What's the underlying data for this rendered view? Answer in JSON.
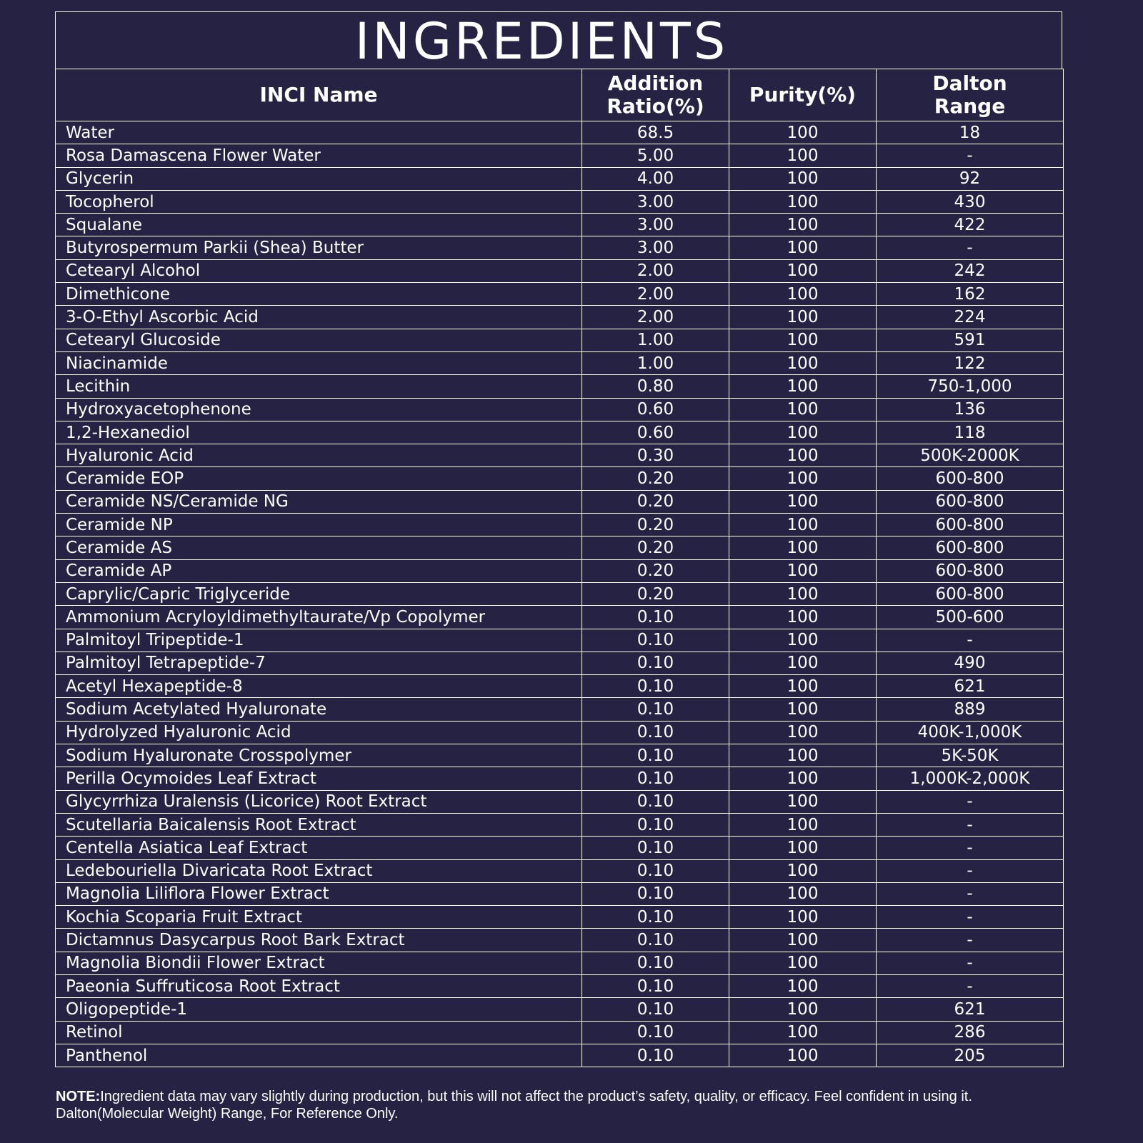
{
  "title": "INGREDIENTS",
  "headers": {
    "inci_name": "INCI Name",
    "addition_ratio_line1": "Addition",
    "addition_ratio_line2": "Ratio(%)",
    "purity": "Purity(%)",
    "dalton_line1": "Dalton",
    "dalton_line2": "Range"
  },
  "rows": [
    {
      "name": "Water",
      "ratio": "68.5",
      "purity": "100",
      "dalton": "18"
    },
    {
      "name": "Rosa Damascena Flower Water",
      "ratio": "5.00",
      "purity": "100",
      "dalton": "-"
    },
    {
      "name": "Glycerin",
      "ratio": "4.00",
      "purity": "100",
      "dalton": "92"
    },
    {
      "name": "Tocopherol",
      "ratio": "3.00",
      "purity": "100",
      "dalton": "430"
    },
    {
      "name": "Squalane",
      "ratio": "3.00",
      "purity": "100",
      "dalton": "422"
    },
    {
      "name": "Butyrospermum Parkii (Shea) Butter",
      "ratio": "3.00",
      "purity": "100",
      "dalton": "-"
    },
    {
      "name": "Cetearyl Alcohol",
      "ratio": "2.00",
      "purity": "100",
      "dalton": "242"
    },
    {
      "name": "Dimethicone",
      "ratio": "2.00",
      "purity": "100",
      "dalton": "162"
    },
    {
      "name": "3-O-Ethyl Ascorbic Acid",
      "ratio": "2.00",
      "purity": "100",
      "dalton": "224"
    },
    {
      "name": "Cetearyl Glucoside",
      "ratio": "1.00",
      "purity": "100",
      "dalton": "591"
    },
    {
      "name": "Niacinamide",
      "ratio": "1.00",
      "purity": "100",
      "dalton": "122"
    },
    {
      "name": "Lecithin",
      "ratio": "0.80",
      "purity": "100",
      "dalton": "750-1,000"
    },
    {
      "name": "Hydroxyacetophenone",
      "ratio": "0.60",
      "purity": "100",
      "dalton": "136"
    },
    {
      "name": "1,2-Hexanediol",
      "ratio": "0.60",
      "purity": "100",
      "dalton": "118"
    },
    {
      "name": "Hyaluronic Acid",
      "ratio": "0.30",
      "purity": "100",
      "dalton": "500K-2000K"
    },
    {
      "name": "Ceramide EOP",
      "ratio": "0.20",
      "purity": "100",
      "dalton": "600-800"
    },
    {
      "name": "Ceramide NS/Ceramide NG",
      "ratio": "0.20",
      "purity": "100",
      "dalton": "600-800"
    },
    {
      "name": "Ceramide NP",
      "ratio": "0.20",
      "purity": "100",
      "dalton": "600-800"
    },
    {
      "name": "Ceramide AS",
      "ratio": "0.20",
      "purity": "100",
      "dalton": "600-800"
    },
    {
      "name": "Ceramide AP",
      "ratio": "0.20",
      "purity": "100",
      "dalton": "600-800"
    },
    {
      "name": "Caprylic/Capric Triglyceride",
      "ratio": "0.20",
      "purity": "100",
      "dalton": "600-800"
    },
    {
      "name": "Ammonium Acryloyldimethyltaurate/Vp Copolymer",
      "ratio": "0.10",
      "purity": "100",
      "dalton": "500-600"
    },
    {
      "name": "Palmitoyl Tripeptide-1",
      "ratio": "0.10",
      "purity": "100",
      "dalton": "-"
    },
    {
      "name": "Palmitoyl Tetrapeptide-7",
      "ratio": "0.10",
      "purity": "100",
      "dalton": "490"
    },
    {
      "name": "Acetyl Hexapeptide-8",
      "ratio": "0.10",
      "purity": "100",
      "dalton": "621"
    },
    {
      "name": "Sodium Acetylated Hyaluronate",
      "ratio": "0.10",
      "purity": "100",
      "dalton": "889"
    },
    {
      "name": "Hydrolyzed Hyaluronic Acid",
      "ratio": "0.10",
      "purity": "100",
      "dalton": "400K-1,000K"
    },
    {
      "name": "Sodium Hyaluronate Crosspolymer",
      "ratio": "0.10",
      "purity": "100",
      "dalton": "5K-50K"
    },
    {
      "name": "Perilla Ocymoides Leaf Extract",
      "ratio": "0.10",
      "purity": "100",
      "dalton": "1,000K-2,000K"
    },
    {
      "name": "Glycyrrhiza Uralensis (Licorice) Root Extract",
      "ratio": "0.10",
      "purity": "100",
      "dalton": "-"
    },
    {
      "name": "Scutellaria Baicalensis Root Extract",
      "ratio": "0.10",
      "purity": "100",
      "dalton": "-"
    },
    {
      "name": "Centella Asiatica Leaf Extract",
      "ratio": "0.10",
      "purity": "100",
      "dalton": "-"
    },
    {
      "name": "Ledebouriella Divaricata Root Extract",
      "ratio": "0.10",
      "purity": "100",
      "dalton": "-"
    },
    {
      "name": "Magnolia Liliflora Flower Extract",
      "ratio": "0.10",
      "purity": "100",
      "dalton": "-"
    },
    {
      "name": "Kochia Scoparia Fruit Extract",
      "ratio": "0.10",
      "purity": "100",
      "dalton": "-"
    },
    {
      "name": "Dictamnus Dasycarpus Root Bark Extract",
      "ratio": "0.10",
      "purity": "100",
      "dalton": "-"
    },
    {
      "name": "Magnolia Biondii Flower Extract",
      "ratio": "0.10",
      "purity": "100",
      "dalton": "-"
    },
    {
      "name": "Paeonia Suffruticosa Root Extract",
      "ratio": "0.10",
      "purity": "100",
      "dalton": "-"
    },
    {
      "name": "Oligopeptide-1",
      "ratio": "0.10",
      "purity": "100",
      "dalton": "621"
    },
    {
      "name": "Retinol",
      "ratio": "0.10",
      "purity": "100",
      "dalton": "286"
    },
    {
      "name": "Panthenol",
      "ratio": "0.10",
      "purity": "100",
      "dalton": "205"
    }
  ],
  "note": {
    "label": "NOTE:",
    "line1": "Ingredient data may vary slightly during production, but this will not affect the product’s safety, quality, or efficacy. Feel confident in using it.",
    "line2": "Dalton(Molecular Weight) Range, For Reference Only."
  },
  "colors": {
    "background": "#252244",
    "foreground": "#ffffff"
  }
}
